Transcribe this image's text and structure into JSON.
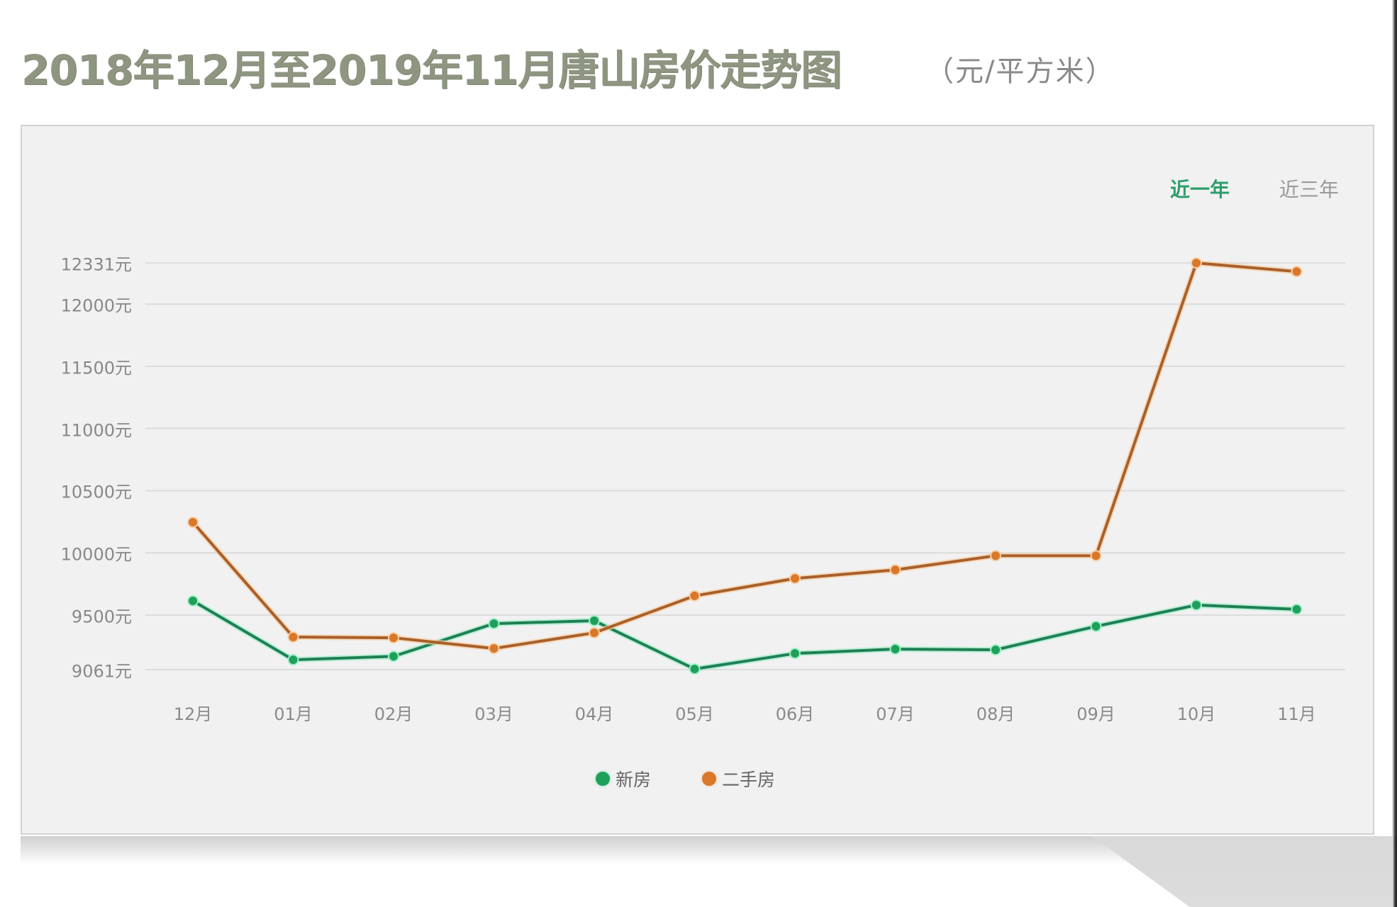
{
  "header": {
    "title": "2018年12月至2019年11月唐山房价走势图",
    "unit": "（元/平方米）"
  },
  "tabs": [
    {
      "label": "近一年",
      "active": true
    },
    {
      "label": "近三年",
      "active": false
    }
  ],
  "colors": {
    "new_house": "#1fa05a",
    "second_hand": "#d9772a",
    "active_tab": "#2e9e6b",
    "title": "#8e9682",
    "grid": "#dcdcdc",
    "card_bg": "#f1f1f2"
  },
  "chart_data": {
    "type": "line",
    "title": "2018年12月至2019年11月唐山房价走势图",
    "subtitle": "（元/平方米）",
    "xlabel": "",
    "ylabel": "元/平方米",
    "categories": [
      "12月",
      "01月",
      "02月",
      "03月",
      "04月",
      "05月",
      "06月",
      "07月",
      "08月",
      "09月",
      "10月",
      "11月"
    ],
    "y_ticks": [
      12331,
      12000,
      11500,
      11000,
      10500,
      10000,
      9500,
      9061
    ],
    "y_tick_labels": [
      "12331元",
      "12000元",
      "11500元",
      "11000元",
      "10500元",
      "10000元",
      "9500元",
      "9061元"
    ],
    "ylim": [
      9061,
      12331
    ],
    "grid": true,
    "legend_position": "bottom",
    "series": [
      {
        "name": "新房",
        "color": "#1fa05a",
        "values": [
          9614,
          9140,
          9168,
          9431,
          9454,
          9066,
          9191,
          9226,
          9220,
          9409,
          9580,
          9546
        ]
      },
      {
        "name": "二手房",
        "color": "#d9772a",
        "values": [
          10246,
          9323,
          9317,
          9231,
          9357,
          9654,
          9794,
          9863,
          9977,
          9977,
          12331,
          12262
        ]
      }
    ]
  }
}
